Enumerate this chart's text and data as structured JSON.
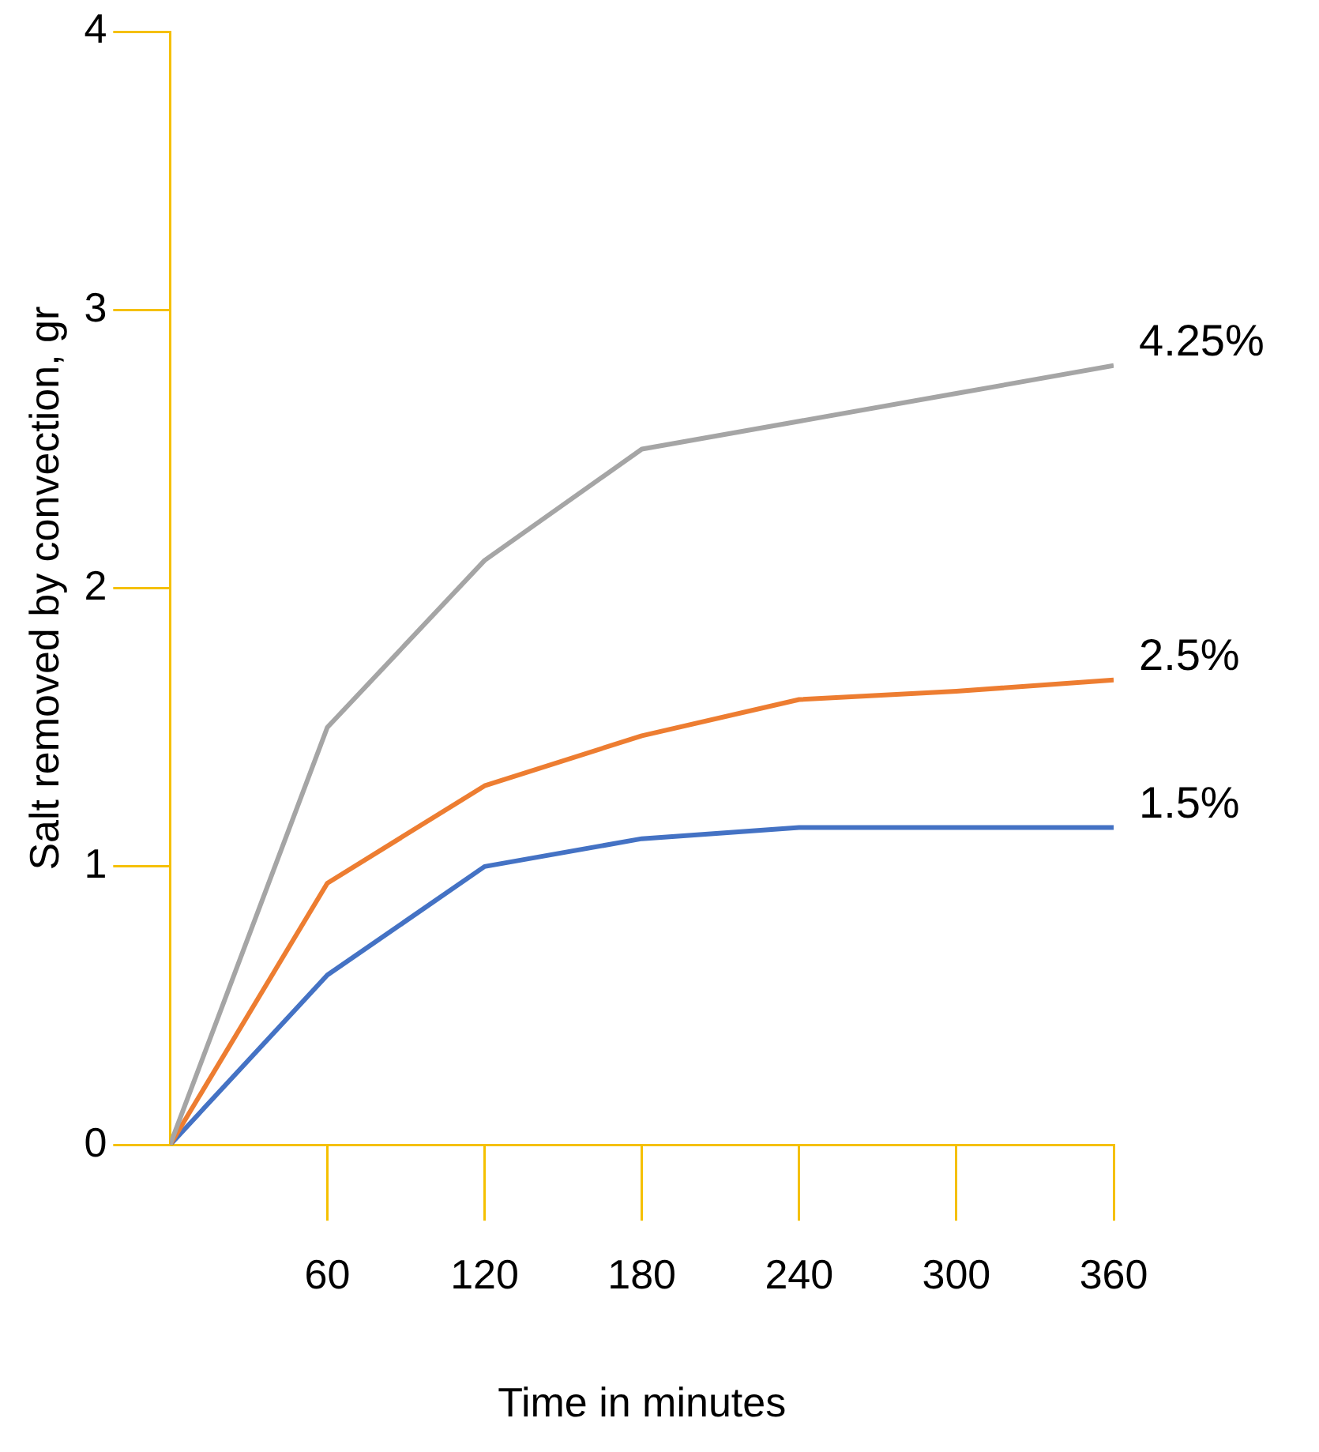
{
  "chart_data": {
    "type": "line",
    "xlabel": "Time in minutes",
    "ylabel": "Salt removed by convection, gr",
    "x": [
      0,
      60,
      120,
      180,
      240,
      300,
      360
    ],
    "xlim": [
      0,
      360
    ],
    "xticks": [
      60,
      120,
      180,
      240,
      300,
      360
    ],
    "ylim": [
      0,
      4
    ],
    "yticks": [
      0,
      1,
      2,
      3,
      4
    ],
    "grid": false,
    "legend": false,
    "marker": "none",
    "line_style": "solid",
    "series": [
      {
        "name": "4.25%",
        "color": "#a5a5a5",
        "values": [
          0,
          1.5,
          2.1,
          2.5,
          2.6,
          2.7,
          2.8
        ]
      },
      {
        "name": "2.5%",
        "color": "#ed7d31",
        "values": [
          0,
          0.94,
          1.29,
          1.47,
          1.6,
          1.63,
          1.67
        ]
      },
      {
        "name": "1.5%",
        "color": "#4472c4",
        "values": [
          0,
          0.61,
          1.0,
          1.1,
          1.14,
          1.14,
          1.14
        ]
      }
    ]
  }
}
